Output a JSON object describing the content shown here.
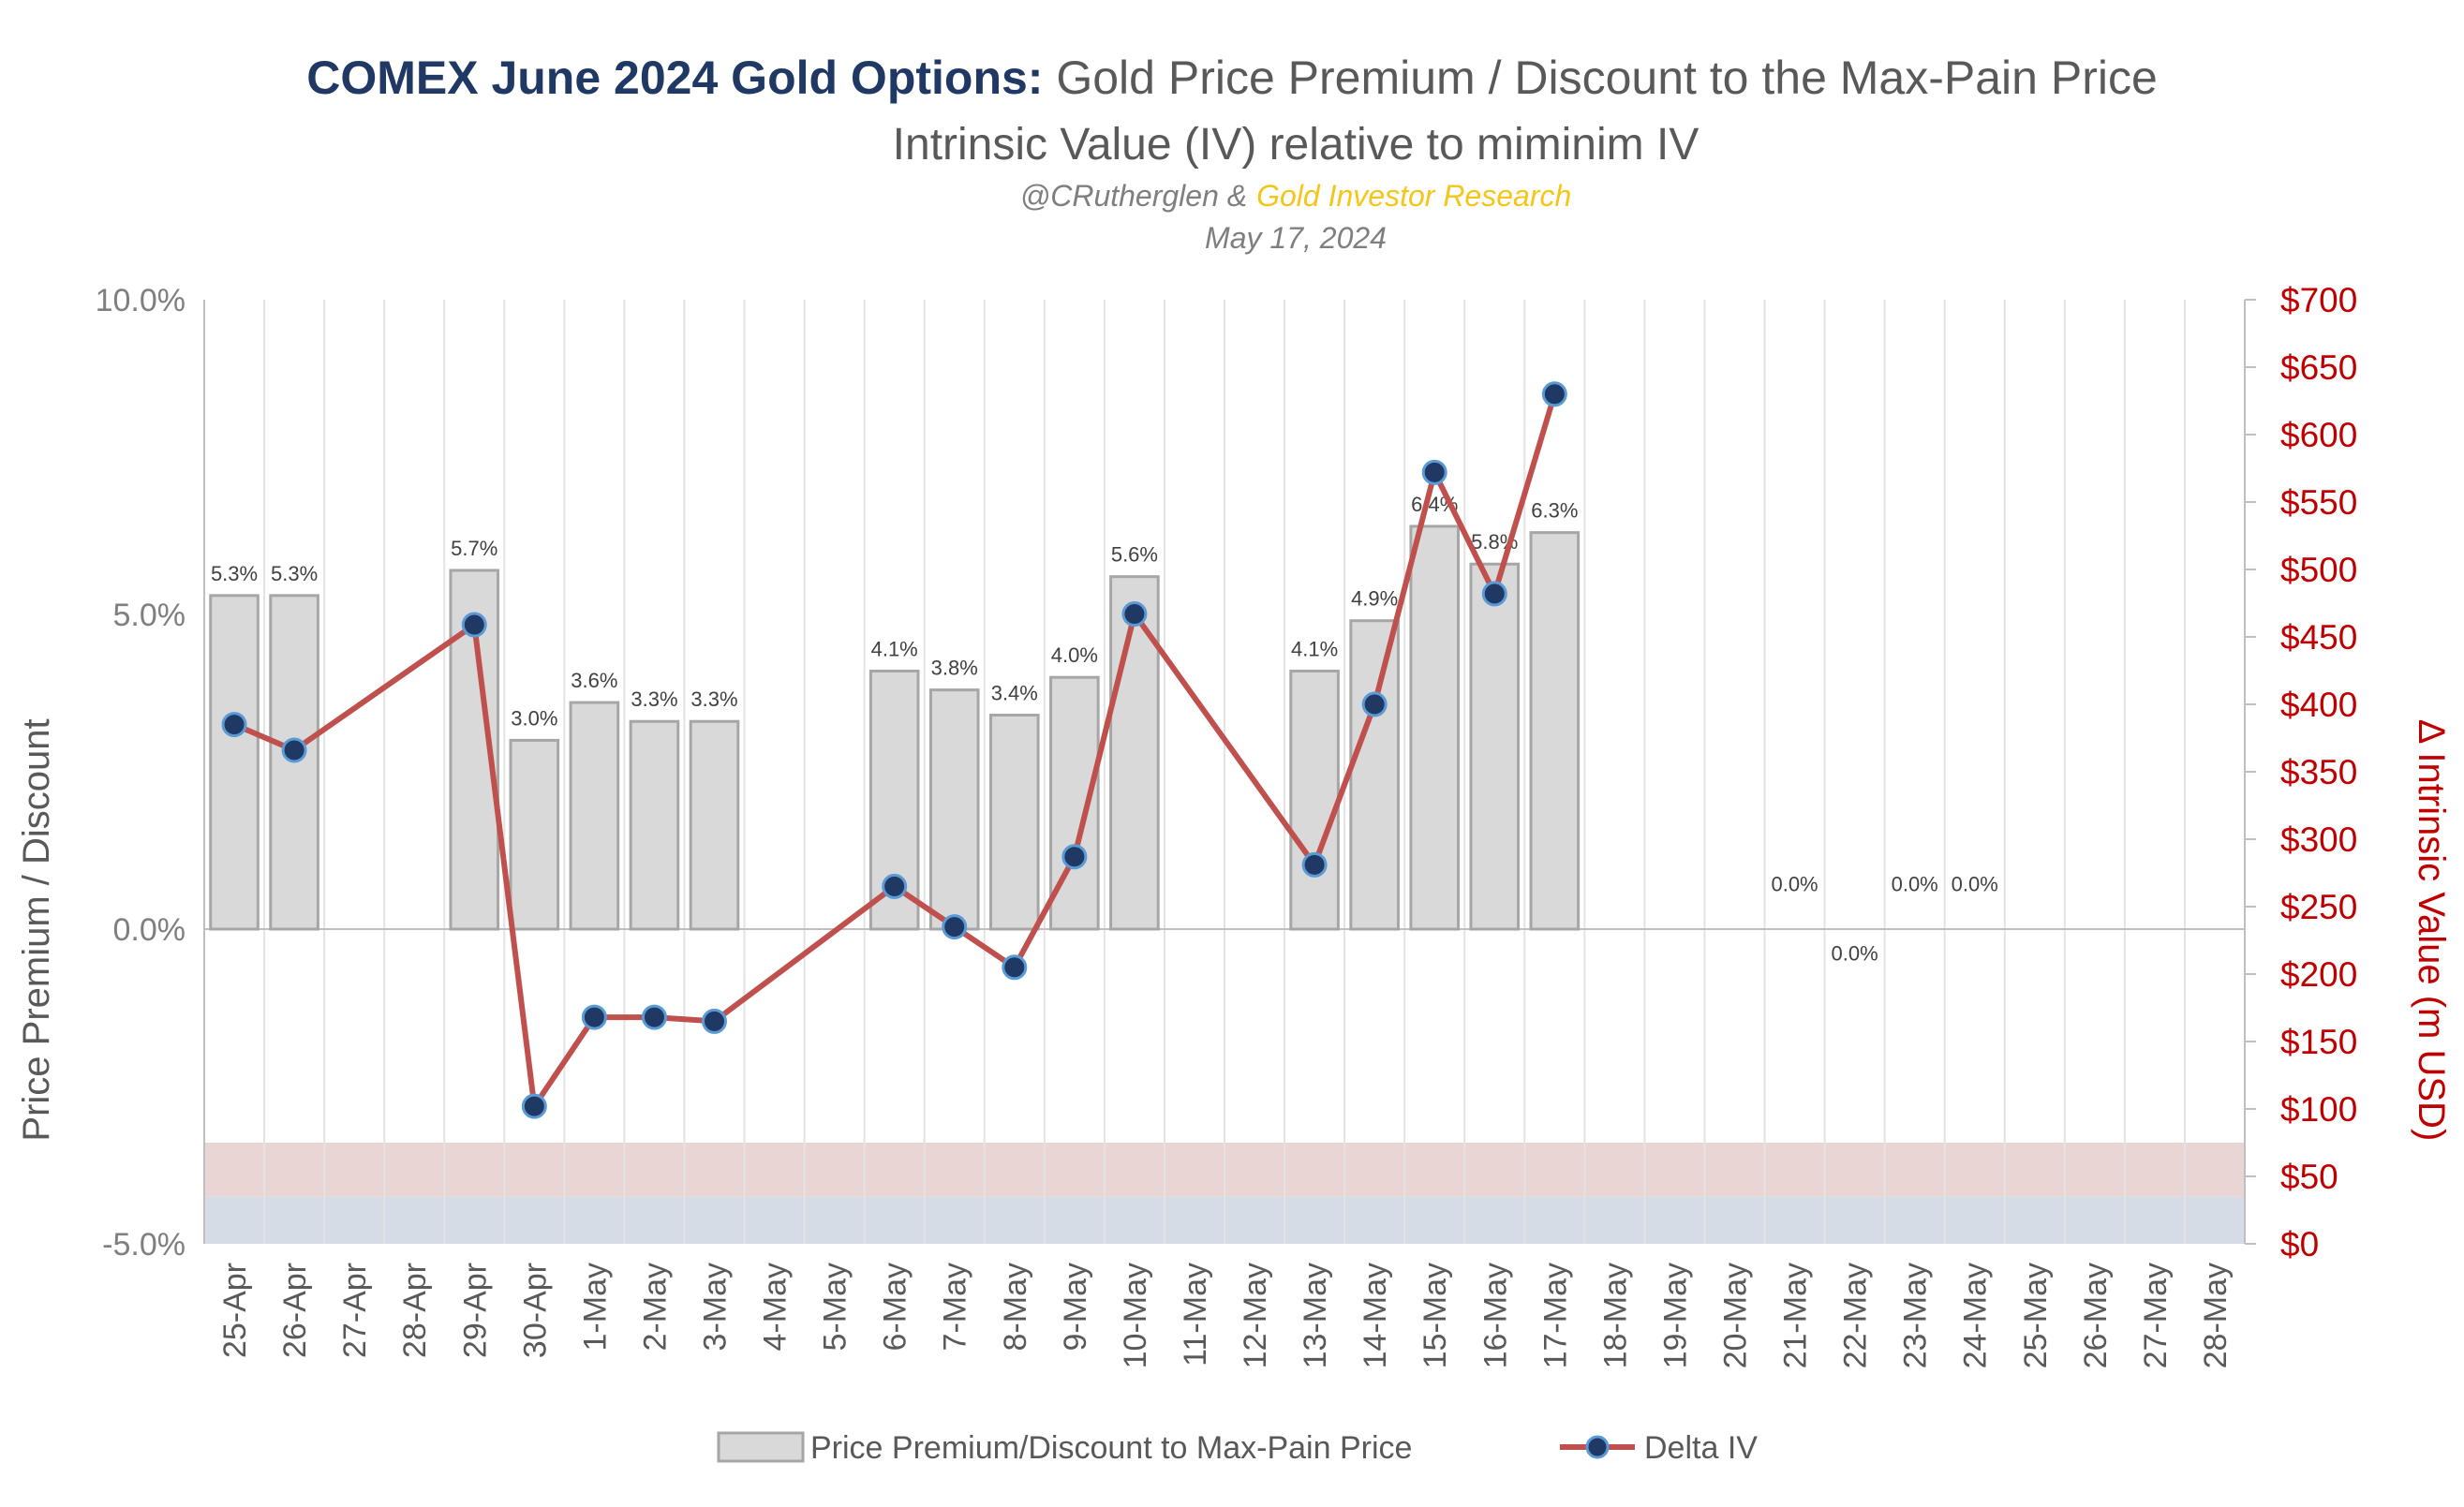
{
  "title": {
    "bold": "COMEX June 2024 Gold Options:",
    "rest": " Gold Price Premium / Discount to the Max-Pain Price",
    "subtitle": "Intrinsic Value (IV) relative to miminim IV",
    "credit_handle": "@CRutherglen &",
    "credit_brand": "Gold Investor Research",
    "date": "May 17, 2024"
  },
  "colors": {
    "title_bold": "#1f3864",
    "brand": "#f5c518",
    "bar_fill": "#d9d9d9",
    "bar_stroke": "#a6a6a6",
    "line": "#c0504d",
    "marker_fill": "#1f3864",
    "marker_stroke": "#5b9bd5",
    "right_axis": "#c00000",
    "band_pink": "#ead5d5",
    "band_blue": "#d6dce5"
  },
  "chart_data": {
    "type": "bar",
    "categories": [
      "25-Apr",
      "26-Apr",
      "27-Apr",
      "28-Apr",
      "29-Apr",
      "30-Apr",
      "1-May",
      "2-May",
      "3-May",
      "4-May",
      "5-May",
      "6-May",
      "7-May",
      "8-May",
      "9-May",
      "10-May",
      "11-May",
      "12-May",
      "13-May",
      "14-May",
      "15-May",
      "16-May",
      "17-May",
      "18-May",
      "19-May",
      "20-May",
      "21-May",
      "22-May",
      "23-May",
      "24-May",
      "25-May",
      "26-May",
      "27-May",
      "28-May"
    ],
    "series": [
      {
        "name": "Price Premium/Discount to Max-Pain Price",
        "type": "bar",
        "axis": "left",
        "values": [
          5.3,
          5.3,
          null,
          null,
          5.7,
          3.0,
          3.6,
          3.3,
          3.3,
          null,
          null,
          4.1,
          3.8,
          3.4,
          4.0,
          5.6,
          null,
          null,
          4.1,
          4.9,
          6.4,
          5.8,
          6.3,
          null,
          null,
          null,
          0.0,
          0.0,
          0.0,
          0.0,
          null,
          null,
          null,
          null
        ],
        "labels": [
          "5.3%",
          "5.3%",
          null,
          null,
          "5.7%",
          "3.0%",
          "3.6%",
          "3.3%",
          "3.3%",
          null,
          null,
          "4.1%",
          "3.8%",
          "3.4%",
          "4.0%",
          "5.6%",
          null,
          null,
          "4.1%",
          "4.9%",
          "6.4%",
          "5.8%",
          "6.3%",
          null,
          null,
          null,
          "0.0%",
          "0.0%",
          "0.0%",
          "0.0%",
          null,
          null,
          null,
          null
        ],
        "label_offsets_pct": [
          null,
          null,
          null,
          null,
          null,
          null,
          null,
          null,
          null,
          null,
          null,
          null,
          null,
          null,
          null,
          null,
          null,
          null,
          null,
          null,
          null,
          null,
          null,
          null,
          null,
          null,
          0.6,
          -0.5,
          0.6,
          0.6,
          null,
          null,
          null,
          null
        ]
      },
      {
        "name": "Delta IV",
        "type": "line",
        "axis": "right",
        "values": [
          385,
          366,
          null,
          null,
          459,
          102,
          168,
          168,
          165,
          null,
          null,
          265,
          235,
          205,
          287,
          467,
          null,
          null,
          281,
          400,
          572,
          482,
          630,
          null,
          null,
          null,
          null,
          null,
          null,
          null,
          null,
          null,
          null,
          null
        ]
      }
    ],
    "y_left": {
      "label": "Price Premium / Discount",
      "min": -5,
      "max": 10,
      "ticks": [
        10,
        5,
        0,
        -5
      ],
      "tick_labels": [
        "10.0%",
        "5.0%",
        "0.0%",
        "-5.0%"
      ]
    },
    "y_right": {
      "label": "Δ Intrinsic Value (m USD)",
      "min": 0,
      "max": 700,
      "ticks": [
        700,
        650,
        600,
        550,
        500,
        450,
        400,
        350,
        300,
        250,
        200,
        150,
        100,
        50,
        0
      ],
      "tick_labels": [
        "$700",
        "$650",
        "$600",
        "$550",
        "$500",
        "$450",
        "$400",
        "$350",
        "$300",
        "$250",
        "$200",
        "$150",
        "$100",
        "$50",
        "$0"
      ]
    },
    "bands": [
      {
        "name": "pink",
        "from": 35,
        "to": 75
      },
      {
        "name": "blue",
        "from": 0,
        "to": 35
      }
    ],
    "grid": "vertical",
    "legend": {
      "position": "bottom",
      "items": [
        "Price Premium/Discount to Max-Pain Price",
        "Delta IV"
      ]
    }
  }
}
